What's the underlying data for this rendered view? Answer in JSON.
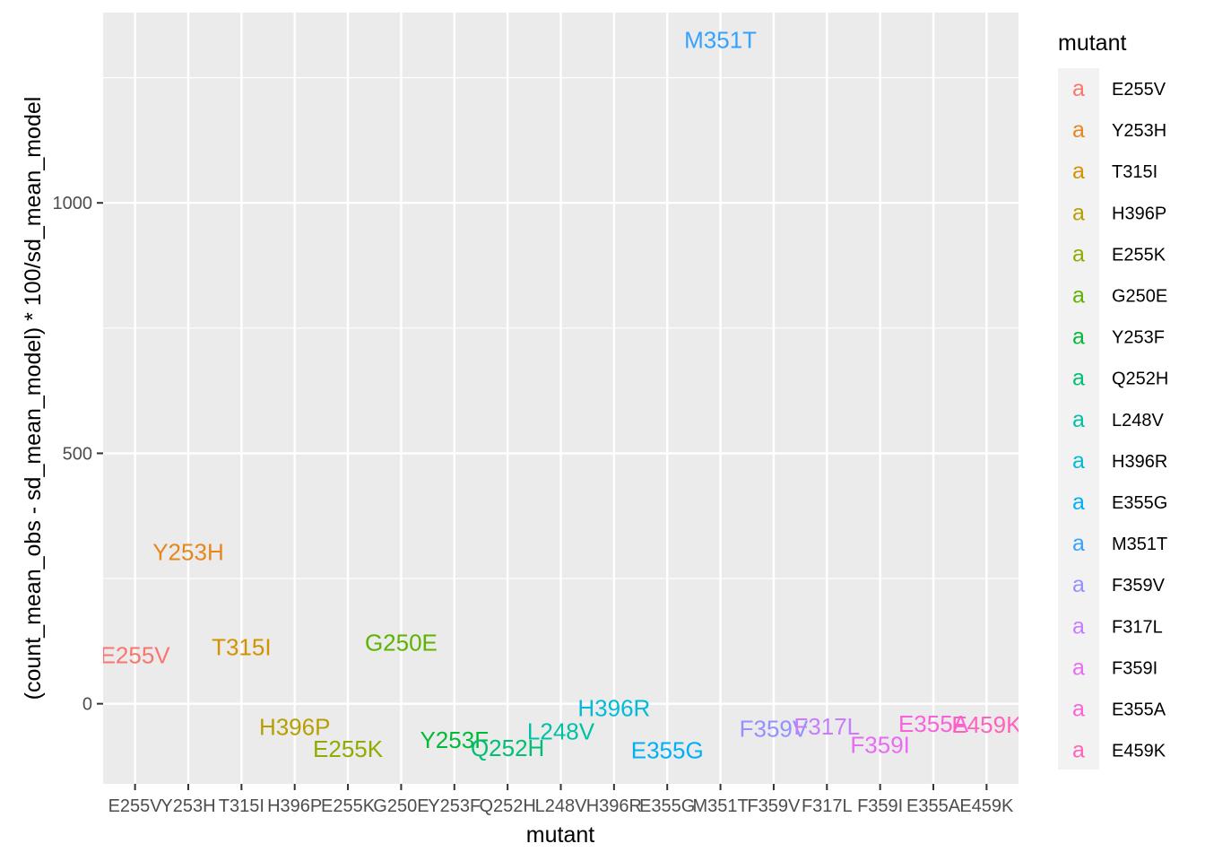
{
  "chart_data": {
    "type": "scatter",
    "xlabel": "mutant",
    "ylabel": "(count_mean_obs - sd_mean_model) * 100/sd_mean_model",
    "ylim": [
      -160,
      1380
    ],
    "y_ticks": [
      0,
      500,
      1000
    ],
    "grid": true,
    "legend_title": "mutant",
    "legend_position": "right",
    "categories": [
      "E255V",
      "Y253H",
      "T315I",
      "H396P",
      "E255K",
      "G250E",
      "Y253F",
      "Q252H",
      "L248V",
      "H396R",
      "E355G",
      "M351T",
      "F359V",
      "F317L",
      "F359I",
      "E355A",
      "E459K"
    ],
    "colors": [
      "#F8766D",
      "#E7861B",
      "#D39200",
      "#B79F00",
      "#93AA00",
      "#5EB300",
      "#00BA38",
      "#00BF74",
      "#00C1A3",
      "#00BCD8",
      "#00B0F6",
      "#35A2FF",
      "#9590FF",
      "#C77CFF",
      "#E76BF3",
      "#FA62DB",
      "#FF62BC"
    ],
    "values": [
      97,
      303,
      113,
      -46,
      -90,
      122,
      -72,
      -88,
      -55,
      -9,
      -93,
      1325,
      -50,
      -45,
      -82,
      -40,
      -42
    ],
    "legend_key_glyph": "a"
  }
}
